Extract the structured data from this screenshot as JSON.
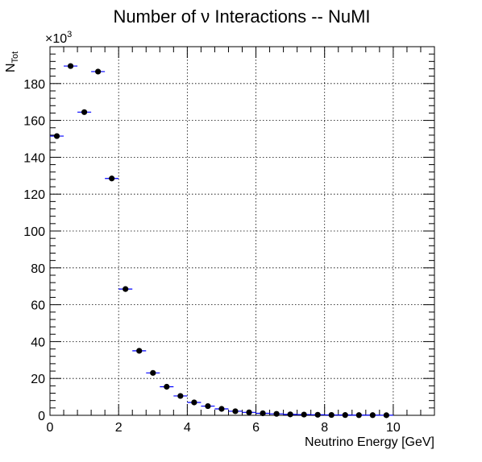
{
  "chart_data": {
    "type": "scatter",
    "title": "Number of ν Interactions -- NuMI",
    "xlabel": "Neutrino Energy [GeV]",
    "ylabel": {
      "main": "N",
      "sub": "Tot"
    },
    "y_multiplier": {
      "base": "×10",
      "exp": "3"
    },
    "xlim": [
      0,
      11.2
    ],
    "ylim": [
      0,
      200
    ],
    "x_ticks": [
      0,
      2,
      4,
      6,
      8,
      10
    ],
    "y_ticks": [
      0,
      20,
      40,
      60,
      80,
      100,
      120,
      140,
      160,
      180
    ],
    "grid": true,
    "bin_width": 0.4,
    "marker_color": "#000000",
    "error_bar_color": "#0000ff",
    "series": [
      {
        "x": [
          0.2,
          0.6,
          1.0,
          1.4,
          1.8,
          2.2,
          2.6,
          3.0,
          3.4,
          3.8,
          4.2,
          4.6,
          5.0,
          5.4,
          5.8,
          6.2,
          6.6,
          7.0,
          7.4,
          7.8,
          8.2,
          8.6,
          9.0,
          9.4,
          9.8
        ],
        "y": [
          151.5,
          189.5,
          164.5,
          186.5,
          128.5,
          68.5,
          35.0,
          23.0,
          15.5,
          10.5,
          7.0,
          5.0,
          3.5,
          2.2,
          1.6,
          1.1,
          0.8,
          0.5,
          0.4,
          0.3,
          0.2,
          0.15,
          0.1,
          0.1,
          0.05
        ]
      }
    ]
  }
}
